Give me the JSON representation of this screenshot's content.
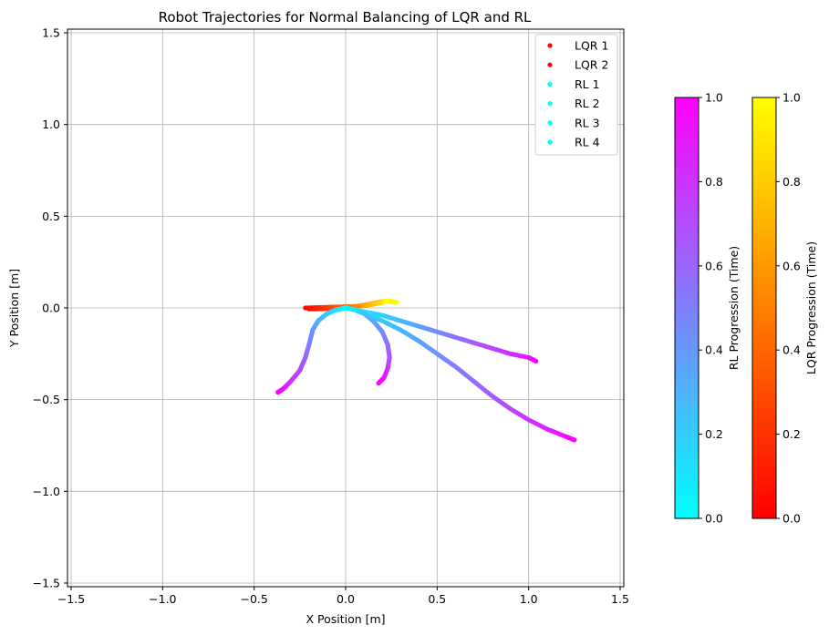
{
  "chart_data": {
    "type": "scatter",
    "title": "Robot Trajectories for Normal Balancing of LQR and RL",
    "xlabel": "X Position [m]",
    "ylabel": "Y Position [m]",
    "xlim": [
      -1.52,
      1.52
    ],
    "ylim": [
      -1.52,
      1.52
    ],
    "x_ticks": [
      -1.5,
      -1.0,
      -0.5,
      0.0,
      0.5,
      1.0,
      1.5
    ],
    "y_ticks": [
      -1.5,
      -1.0,
      -0.5,
      0.0,
      0.5,
      1.0,
      1.5
    ],
    "x_tick_labels": [
      "−1.5",
      "−1.0",
      "−0.5",
      "0.0",
      "0.5",
      "1.0",
      "1.5"
    ],
    "y_tick_labels": [
      "−1.5",
      "−1.0",
      "−0.5",
      "0.0",
      "0.5",
      "1.0",
      "1.5"
    ],
    "grid": true,
    "legend_position": "top-right",
    "series": [
      {
        "name": "LQR 1",
        "colormap": "autumn",
        "legend_color": "#ff0000",
        "x": [
          -0.2,
          -0.15,
          -0.1,
          -0.05,
          0.0,
          0.05,
          0.1,
          0.15,
          0.2,
          0.25,
          0.28
        ],
        "y": [
          -0.005,
          -0.005,
          -0.003,
          0.0,
          0.003,
          0.008,
          0.015,
          0.025,
          0.035,
          0.035,
          0.03
        ]
      },
      {
        "name": "LQR 2",
        "colormap": "autumn",
        "legend_color": "#ff0000",
        "x": [
          -0.22,
          -0.15,
          -0.08,
          -0.02,
          0.05,
          0.1,
          0.15,
          0.2,
          0.23
        ],
        "y": [
          0.0,
          0.002,
          0.004,
          0.006,
          0.008,
          0.012,
          0.02,
          0.03,
          0.04
        ]
      },
      {
        "name": "RL 1",
        "colormap": "cool",
        "legend_color": "#00ffff",
        "x": [
          0.0,
          0.05,
          0.1,
          0.2,
          0.3,
          0.4,
          0.5,
          0.6,
          0.7,
          0.8,
          0.9,
          1.0,
          1.1,
          1.2,
          1.25
        ],
        "y": [
          0.0,
          -0.01,
          -0.03,
          -0.07,
          -0.12,
          -0.18,
          -0.25,
          -0.32,
          -0.4,
          -0.48,
          -0.55,
          -0.61,
          -0.66,
          -0.7,
          -0.72
        ]
      },
      {
        "name": "RL 2",
        "colormap": "cool",
        "legend_color": "#00ffff",
        "x": [
          0.0,
          0.1,
          0.2,
          0.3,
          0.4,
          0.5,
          0.6,
          0.7,
          0.8,
          0.9,
          1.0,
          1.04
        ],
        "y": [
          0.0,
          -0.02,
          -0.04,
          -0.07,
          -0.1,
          -0.13,
          -0.16,
          -0.19,
          -0.22,
          -0.25,
          -0.27,
          -0.29
        ]
      },
      {
        "name": "RL 3",
        "colormap": "cool",
        "legend_color": "#00ffff",
        "x": [
          0.0,
          -0.05,
          -0.1,
          -0.15,
          -0.18,
          -0.2,
          -0.22,
          -0.25,
          -0.3,
          -0.34,
          -0.37
        ],
        "y": [
          0.0,
          -0.01,
          -0.03,
          -0.07,
          -0.12,
          -0.2,
          -0.27,
          -0.34,
          -0.4,
          -0.44,
          -0.46
        ]
      },
      {
        "name": "RL 4",
        "colormap": "cool",
        "legend_color": "#00ffff",
        "x": [
          0.0,
          0.05,
          0.1,
          0.15,
          0.2,
          0.23,
          0.24,
          0.23,
          0.21,
          0.18
        ],
        "y": [
          0.0,
          -0.01,
          -0.03,
          -0.07,
          -0.13,
          -0.2,
          -0.27,
          -0.33,
          -0.38,
          -0.41
        ]
      }
    ],
    "colorbars": [
      {
        "label": "RL Progression (Time)",
        "colormap": "cool",
        "range": [
          0.0,
          1.0
        ],
        "ticks": [
          "0.0",
          "0.2",
          "0.4",
          "0.6",
          "0.8",
          "1.0"
        ],
        "colors": [
          "#00ffff",
          "#ff00ff"
        ]
      },
      {
        "label": "LQR Progression (Time)",
        "colormap": "autumn",
        "range": [
          0.0,
          1.0
        ],
        "ticks": [
          "0.0",
          "0.2",
          "0.4",
          "0.6",
          "0.8",
          "1.0"
        ],
        "colors": [
          "#ff0000",
          "#ffff00"
        ]
      }
    ]
  }
}
